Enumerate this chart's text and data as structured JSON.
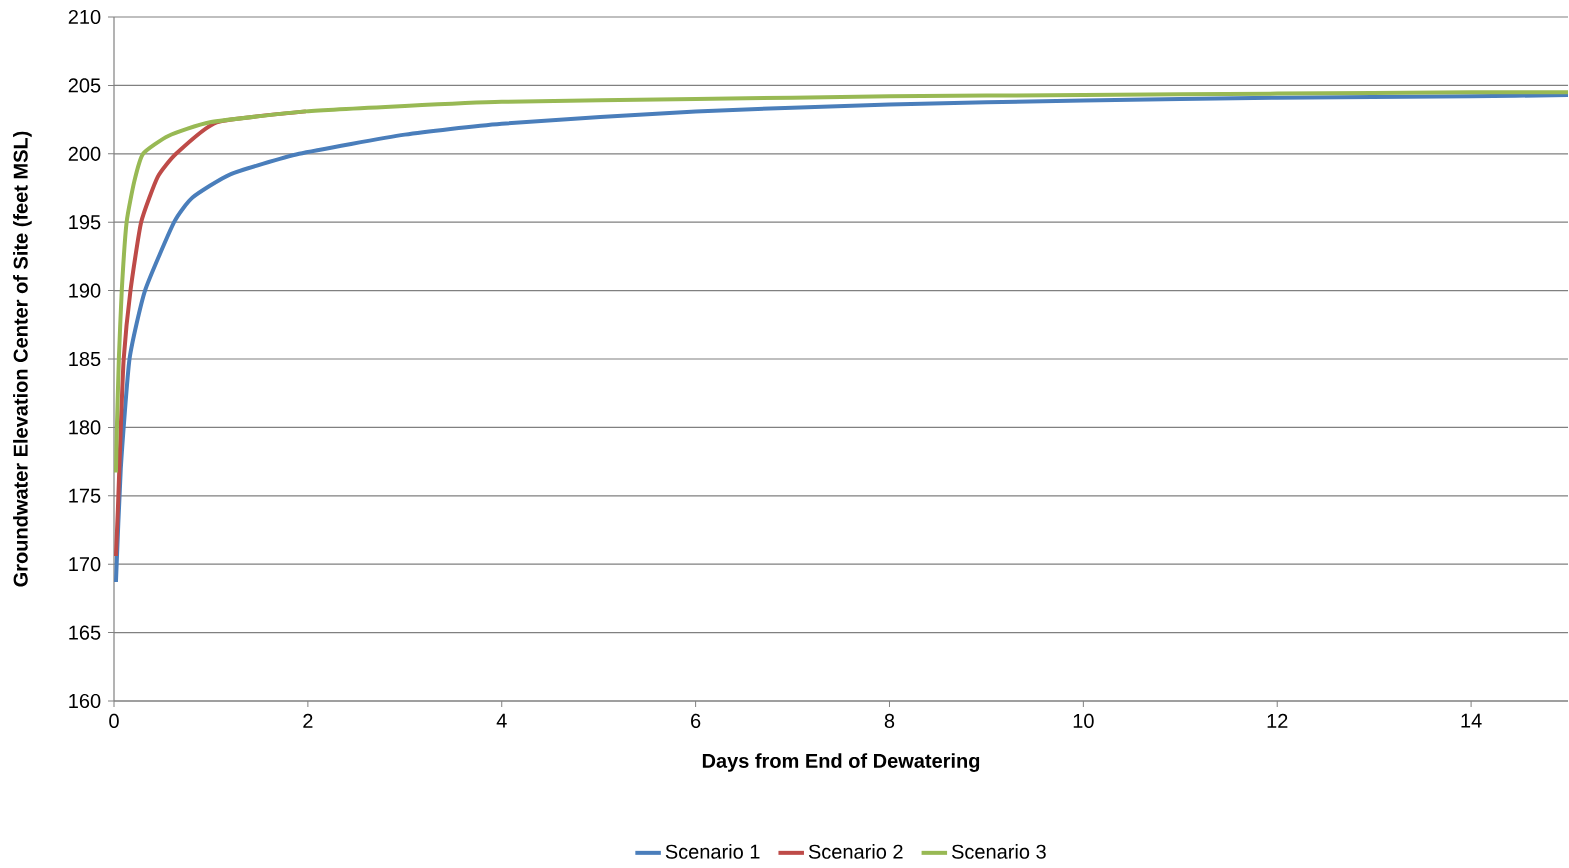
{
  "chart_data": {
    "type": "line",
    "xlabel": "Days from End of Dewatering",
    "ylabel": "Groundwater Elevation Center of Site (feet MSL)",
    "xlim": [
      0,
      15
    ],
    "ylim": [
      160,
      210
    ],
    "xticks": [
      0,
      2,
      4,
      6,
      8,
      10,
      12,
      14
    ],
    "yticks": [
      160,
      165,
      170,
      175,
      180,
      185,
      190,
      195,
      200,
      205,
      210
    ],
    "grid": "y",
    "legend": "bottom",
    "marker": "none",
    "line_style": "solid",
    "series": [
      {
        "name": "Scenario 1",
        "color": "#4a7ebb",
        "x": [
          0.02,
          0.07,
          0.16,
          0.32,
          0.62,
          0.81,
          1.2,
          1.91,
          3,
          4,
          6,
          8,
          10,
          12,
          14,
          15
        ],
        "values": [
          168.7,
          177,
          185,
          190,
          195,
          196.8,
          198.5,
          200,
          201.4,
          202.2,
          203.1,
          203.6,
          203.9,
          204.1,
          204.2,
          204.3
        ]
      },
      {
        "name": "Scenario 2",
        "color": "#be4b48",
        "x": [
          0.02,
          0.04,
          0.07,
          0.1,
          0.17,
          0.28,
          0.45,
          0.64,
          1.06,
          1.98
        ],
        "values": [
          170.6,
          174,
          180,
          185,
          190,
          195,
          198.3,
          200,
          202.3,
          203.1
        ]
      },
      {
        "name": "Scenario 3",
        "color": "#98b954",
        "x": [
          0.02,
          0.03,
          0.05,
          0.08,
          0.13,
          0.21,
          0.3,
          0.56,
          0.99,
          1.98,
          3,
          4,
          6,
          8,
          10,
          12,
          14,
          15
        ],
        "values": [
          176.7,
          180,
          185,
          190,
          195,
          198,
          200,
          201.3,
          202.3,
          203.1,
          203.5,
          203.8,
          204.0,
          204.2,
          204.3,
          204.4,
          204.5,
          204.5
        ]
      }
    ]
  }
}
